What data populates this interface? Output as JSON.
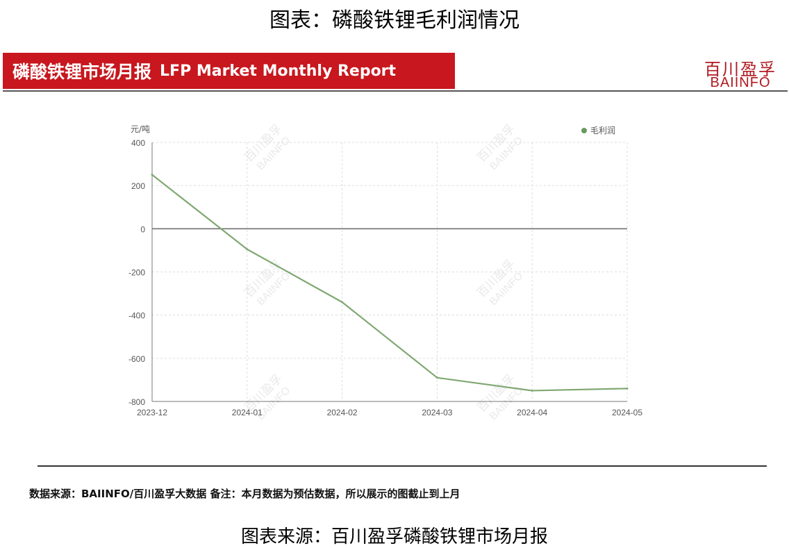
{
  "page": {
    "title": "图表：磷酸铁锂毛利润情况",
    "banner_cn": "磷酸铁锂市场月报",
    "banner_en": "LFP Market Monthly Report",
    "logo_cn": "百川盈孚",
    "logo_en": "BAIINFO",
    "source_note": "数据来源：BAIINFO/百川盈孚大数据  备注：本月数据为预估数据，所以展示的图截止到上月",
    "chart_source": "图表来源：百川盈孚磷酸铁锂市场月报",
    "watermark_cn": "百川盈孚",
    "watermark_en": "BAIINFO"
  },
  "chart_data": {
    "type": "line",
    "title": "",
    "xlabel": "",
    "ylabel": "元/吨",
    "ylim": [
      -800,
      400
    ],
    "yticks": [
      400,
      200,
      0,
      -200,
      -400,
      -600,
      -800
    ],
    "categories": [
      "2023-12",
      "2024-01",
      "2024-02",
      "2024-03",
      "2024-04",
      "2024-05"
    ],
    "series": [
      {
        "name": "毛利润",
        "values": [
          250,
          -95,
          -340,
          -690,
          -750,
          -740
        ]
      }
    ],
    "grid": true,
    "legend": "top-right",
    "colors": {
      "line": "#7fa872",
      "legend_dot": "#6a9a5e",
      "grid": "#dddddd",
      "zero_line": "#666666",
      "axis": "#777777",
      "tick_text": "#555555"
    }
  }
}
